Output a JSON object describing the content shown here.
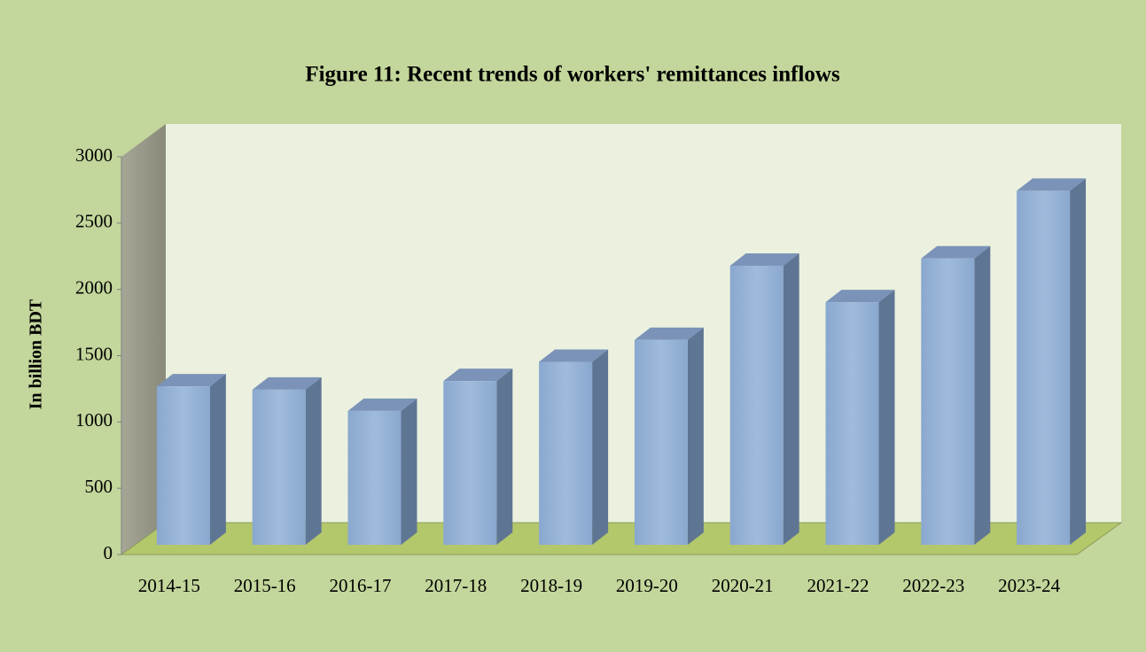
{
  "chart_data": {
    "type": "bar3d",
    "title": "Figure 11: Recent trends of workers' remittances inflows",
    "y_label": "In billion BDT",
    "categories": [
      "2014-15",
      "2015-16",
      "2016-17",
      "2017-18",
      "2018-19",
      "2019-20",
      "2020-21",
      "2021-22",
      "2022-23",
      "2023-24"
    ],
    "values": [
      1195,
      1170,
      1010,
      1235,
      1380,
      1545,
      2105,
      1830,
      2160,
      2670
    ],
    "color": "#95b3d7",
    "ylim": [
      0,
      3000
    ],
    "yticks": [
      0,
      500,
      1000,
      1500,
      2000,
      2500,
      3000
    ],
    "grid": false
  }
}
